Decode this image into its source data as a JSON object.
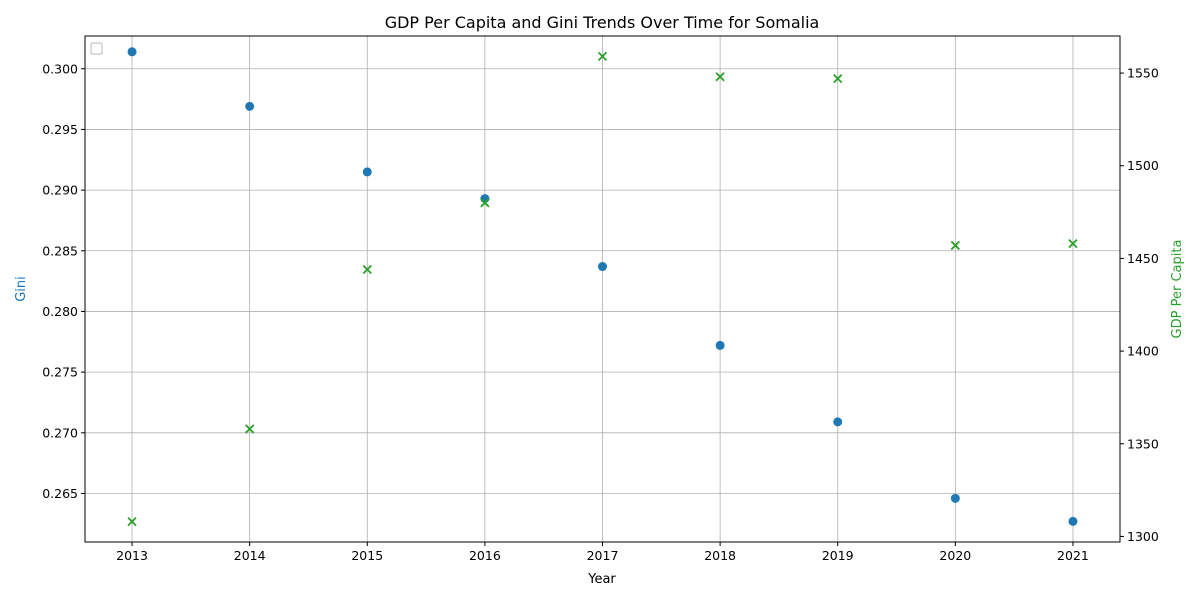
{
  "chart_data": {
    "type": "scatter",
    "title": "GDP Per Capita and Gini Trends Over Time for Somalia",
    "xlabel": "Year",
    "ylabel_left": "Gini",
    "ylabel_right": "GDP Per Capita",
    "x": [
      2013,
      2014,
      2015,
      2016,
      2017,
      2018,
      2019,
      2020,
      2021
    ],
    "xlim": [
      2012.6,
      2021.4
    ],
    "x_ticks": [
      "2013",
      "2014",
      "2015",
      "2016",
      "2017",
      "2018",
      "2019",
      "2020",
      "2021"
    ],
    "ylim_left": [
      0.261,
      0.3027
    ],
    "y_ticks_left": [
      "0.265",
      "0.270",
      "0.275",
      "0.280",
      "0.285",
      "0.290",
      "0.295",
      "0.300"
    ],
    "ylim_right": [
      1297,
      1570
    ],
    "y_ticks_right": [
      "1300",
      "1350",
      "1400",
      "1450",
      "1500",
      "1550"
    ],
    "grid": true,
    "legend": "top-left (empty)",
    "series": [
      {
        "axis": "left",
        "marker": "circle",
        "color": "#1f77b4",
        "values": [
          0.3014,
          0.2969,
          0.2915,
          0.2893,
          0.2837,
          0.2772,
          0.2709,
          0.2646,
          0.2627
        ]
      },
      {
        "axis": "right",
        "marker": "x",
        "color": "#2ca02c",
        "values": [
          1308,
          1358,
          1444,
          1480,
          1559,
          1548,
          1547,
          1457,
          1458
        ]
      }
    ]
  }
}
